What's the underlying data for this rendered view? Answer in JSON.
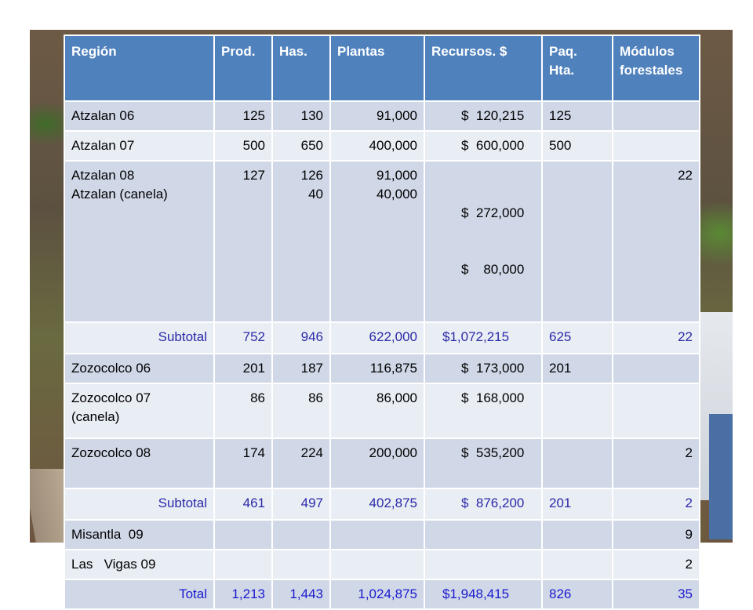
{
  "table": {
    "headers": [
      "Región",
      "Prod.",
      "Has.",
      "Plantas",
      "Recursos. $",
      "Paq. Hta.",
      "Módulos forestales"
    ],
    "rows": [
      {
        "region": "Atzalan 06",
        "prod": "125",
        "has": "130",
        "plantas": "91,000",
        "recursos": "$  120,215",
        "paq": "125",
        "modulos": ""
      },
      {
        "region": "Atzalan 07",
        "prod": "500",
        "has": "650",
        "plantas": "400,000",
        "recursos": "$  600,000",
        "paq": "500",
        "modulos": ""
      },
      {
        "region_l1": "Atzalan 08",
        "region_l2": "Atzalan  (canela)",
        "prod": "127",
        "has_l1": "126",
        "has_l2": "40",
        "plantas_l1": "91,000",
        "plantas_l2": "40,000",
        "recursos_l1": "$  272,000",
        "recursos_l2": "$    80,000",
        "paq": "",
        "modulos": "22"
      },
      {
        "region": "Subtotal",
        "prod": "752",
        "has": "946",
        "plantas": "622,000",
        "recursos": "$1,072,215",
        "paq": "625",
        "modulos": "22"
      },
      {
        "region": "Zozocolco 06",
        "prod": "201",
        "has": "187",
        "plantas": "116,875",
        "recursos": "$  173,000",
        "paq": "201",
        "modulos": ""
      },
      {
        "region_l1": "Zozocolco 07",
        "region_l2": "(canela)",
        "prod": "86",
        "has": "86",
        "plantas": "86,000",
        "recursos": "$  168,000",
        "paq": "",
        "modulos": ""
      },
      {
        "region": "Zozocolco 08",
        "prod": "174",
        "has": "224",
        "plantas": "200,000",
        "recursos": "$  535,200",
        "paq": "",
        "modulos": "2"
      },
      {
        "region": "Subtotal",
        "prod": "461",
        "has": "497",
        "plantas": "402,875",
        "recursos": "$  876,200",
        "paq": "201",
        "modulos": "2"
      },
      {
        "region": "Misantla  09",
        "prod": "",
        "has": "",
        "plantas": "",
        "recursos": "",
        "paq": "",
        "modulos": "9"
      },
      {
        "region": "Las   Vigas 09",
        "prod": "",
        "has": "",
        "plantas": "",
        "recursos": "",
        "paq": "",
        "modulos": "2"
      },
      {
        "region": "Total",
        "prod": "1,213",
        "has": "1,443",
        "plantas": "1,024,875",
        "recursos": "$1,948,415",
        "paq": "826",
        "modulos": "35"
      }
    ]
  },
  "colors": {
    "header_bg": "#4f81bd",
    "row_odd": "#d0d8e8",
    "row_even": "#e9edf4",
    "subtotal_text": "#2a2aa8",
    "total_text": "#1a1acd"
  }
}
